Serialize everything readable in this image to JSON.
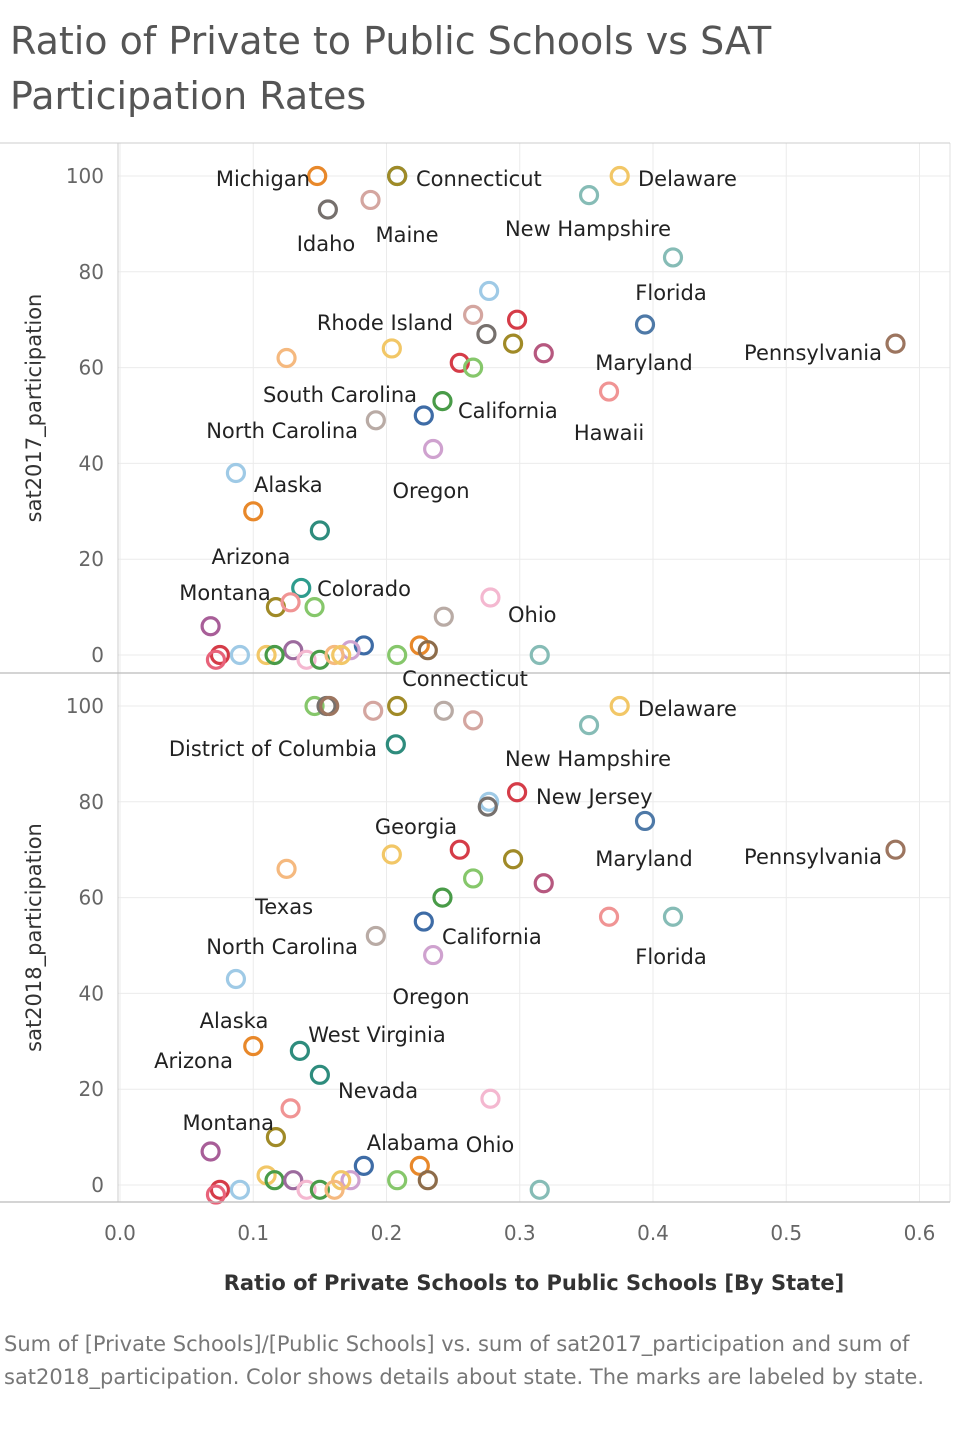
{
  "title": "Ratio of Private to Public Schools vs SAT Participation Rates",
  "caption": "Sum of [Private Schools]/[Public Schools] vs. sum of sat2017_participation and sum of sat2018_participation.  Color shows details about state.  The marks are labeled by state.",
  "chart_data": {
    "type": "scatter",
    "xlabel": "Ratio of Private Schools to Public Schools [By State]",
    "xlim": [
      -0.01,
      0.62
    ],
    "xticks": [
      "0.0",
      "0.1",
      "0.2",
      "0.3",
      "0.4",
      "0.5",
      "0.6"
    ],
    "xtick_values": [
      0,
      0.1,
      0.2,
      0.3,
      0.4,
      0.5,
      0.6
    ],
    "grid": true,
    "panels": [
      {
        "ylabel": "sat2017_participation",
        "ylim": [
          -2,
          107
        ],
        "yticks": [
          "0",
          "20",
          "40",
          "60",
          "80",
          "100"
        ],
        "ytick_values": [
          0,
          20,
          40,
          60,
          80,
          100
        ],
        "points": [
          {
            "x": 0.148,
            "y": 100,
            "color": "#e8882a",
            "label": "Michigan"
          },
          {
            "x": 0.208,
            "y": 100,
            "color": "#2e9c8d"
          },
          {
            "x": 0.208,
            "y": 100,
            "color": "#a08a27",
            "label": "Connecticut"
          },
          {
            "x": 0.375,
            "y": 100,
            "color": "#f2c767",
            "label": "Delaware"
          },
          {
            "x": 0.352,
            "y": 96,
            "color": "#86bcb6"
          },
          {
            "x": 0.156,
            "y": 93,
            "color": "#76706d",
            "label": "Idaho"
          },
          {
            "x": 0.188,
            "y": 95,
            "color": "#d4a6a0",
            "label": "Maine"
          },
          {
            "x": 0.415,
            "y": 83,
            "color": "#86bcb6",
            "label": "Florida"
          },
          {
            "x": 0.277,
            "y": 76,
            "color": "#9fcae6"
          },
          {
            "x": 0.265,
            "y": 71,
            "color": "#d4a6a0",
            "label": "Rhode Island"
          },
          {
            "x": 0.298,
            "y": 70,
            "color": "#d53c48"
          },
          {
            "x": 0.275,
            "y": 67,
            "color": "#76706d"
          },
          {
            "x": 0.394,
            "y": 69,
            "color": "#4e79a7",
            "label": "Maryland"
          },
          {
            "x": 0.582,
            "y": 65,
            "color": "#9c755f",
            "label": "Pennsylvania"
          },
          {
            "x": 0.125,
            "y": 62,
            "color": "#f5b97f"
          },
          {
            "x": 0.204,
            "y": 64,
            "color": "#f2c767"
          },
          {
            "x": 0.295,
            "y": 65,
            "color": "#a08a27"
          },
          {
            "x": 0.318,
            "y": 63,
            "color": "#b6587f"
          },
          {
            "x": 0.255,
            "y": 61,
            "color": "#d53c48"
          },
          {
            "x": 0.265,
            "y": 60,
            "color": "#86c76b"
          },
          {
            "x": 0.242,
            "y": 53,
            "color": "#499b48",
            "label": "California"
          },
          {
            "x": 0.367,
            "y": 55,
            "color": "#f09494",
            "label": "Hawaii"
          },
          {
            "x": 0.192,
            "y": 49,
            "color": "#b9aba5",
            "label": "North Carolina"
          },
          {
            "x": 0.228,
            "y": 50,
            "color": "#3e6ca6"
          },
          {
            "x": 0.235,
            "y": 43,
            "color": "#cfa2cf",
            "label": "Oregon"
          },
          {
            "x": 0.087,
            "y": 38,
            "color": "#9fcae6",
            "label": "Alaska"
          },
          {
            "x": 0.1,
            "y": 30,
            "color": "#e8882a",
            "label": "Arizona"
          },
          {
            "x": 0.15,
            "y": 26,
            "color": "#2e8c7d"
          },
          {
            "x": 0.136,
            "y": 14,
            "color": "#2e9c8d",
            "label": "Colorado"
          },
          {
            "x": 0.278,
            "y": 12,
            "color": "#f4b8d0",
            "label": "Ohio"
          },
          {
            "x": 0.117,
            "y": 10,
            "color": "#a08a27",
            "label": "Montana"
          },
          {
            "x": 0.128,
            "y": 11,
            "color": "#f09494"
          },
          {
            "x": 0.146,
            "y": 10,
            "color": "#86c76b"
          },
          {
            "x": 0.243,
            "y": 8,
            "color": "#b9aba5"
          },
          {
            "x": 0.068,
            "y": 6,
            "color": "#a85e98"
          },
          {
            "x": 0.183,
            "y": 2,
            "color": "#3e6ca6"
          },
          {
            "x": 0.225,
            "y": 2,
            "color": "#e8882a"
          },
          {
            "x": 0.231,
            "y": 1,
            "color": "#8d6c4a"
          },
          {
            "x": 0.13,
            "y": 1,
            "color": "#9c6b9e"
          },
          {
            "x": 0.173,
            "y": 1,
            "color": "#cfa2cf"
          },
          {
            "x": 0.075,
            "y": 0,
            "color": "#d53c48"
          },
          {
            "x": 0.072,
            "y": -1,
            "color": "#e8637a"
          },
          {
            "x": 0.09,
            "y": 0,
            "color": "#9fcae6"
          },
          {
            "x": 0.11,
            "y": 0,
            "color": "#f2c767"
          },
          {
            "x": 0.116,
            "y": 0,
            "color": "#499b48"
          },
          {
            "x": 0.14,
            "y": -1,
            "color": "#f4b8d0"
          },
          {
            "x": 0.15,
            "y": -1,
            "color": "#499b48"
          },
          {
            "x": 0.161,
            "y": 0,
            "color": "#f5b97f"
          },
          {
            "x": 0.166,
            "y": 0,
            "color": "#f2c767"
          },
          {
            "x": 0.208,
            "y": 0,
            "color": "#86c76b"
          },
          {
            "x": 0.315,
            "y": 0,
            "color": "#86bcb6"
          }
        ],
        "label_text": [
          {
            "text": "New Hampshire",
            "x": 0.352,
            "y": 96,
            "pos": "below"
          },
          {
            "text": "South Carolina",
            "x": 0.165,
            "y": 62,
            "pos": "below"
          }
        ]
      },
      {
        "ylabel": "sat2018_participation",
        "ylim": [
          -3,
          107
        ],
        "yticks": [
          "0",
          "20",
          "40",
          "60",
          "80",
          "100"
        ],
        "ytick_values": [
          0,
          20,
          40,
          60,
          80,
          100
        ],
        "points": [
          {
            "x": 0.146,
            "y": 100,
            "color": "#86c76b"
          },
          {
            "x": 0.155,
            "y": 100,
            "color": "#76706d"
          },
          {
            "x": 0.157,
            "y": 100,
            "color": "#9c755f"
          },
          {
            "x": 0.208,
            "y": 100,
            "color": "#a08a27",
            "label": "Connecticut"
          },
          {
            "x": 0.19,
            "y": 99,
            "color": "#d4a6a0"
          },
          {
            "x": 0.243,
            "y": 99,
            "color": "#b9aba5"
          },
          {
            "x": 0.265,
            "y": 97,
            "color": "#d4a6a0"
          },
          {
            "x": 0.375,
            "y": 100,
            "color": "#f2c767",
            "label": "Delaware"
          },
          {
            "x": 0.352,
            "y": 96,
            "color": "#86bcb6",
            "label": "New Hampshire"
          },
          {
            "x": 0.207,
            "y": 92,
            "color": "#2e8c7d",
            "label": "District of Columbia"
          },
          {
            "x": 0.298,
            "y": 82,
            "color": "#d53c48",
            "label": "New Jersey"
          },
          {
            "x": 0.277,
            "y": 80,
            "color": "#9fcae6"
          },
          {
            "x": 0.276,
            "y": 79,
            "color": "#76706d"
          },
          {
            "x": 0.394,
            "y": 76,
            "color": "#4e79a7",
            "label": "Maryland"
          },
          {
            "x": 0.582,
            "y": 70,
            "color": "#9c755f",
            "label": "Pennsylvania"
          },
          {
            "x": 0.255,
            "y": 70,
            "color": "#d53c48",
            "label": "Georgia"
          },
          {
            "x": 0.204,
            "y": 69,
            "color": "#f2c767"
          },
          {
            "x": 0.295,
            "y": 68,
            "color": "#a08a27"
          },
          {
            "x": 0.125,
            "y": 66,
            "color": "#f5b97f",
            "label": "Texas"
          },
          {
            "x": 0.265,
            "y": 64,
            "color": "#86c76b"
          },
          {
            "x": 0.318,
            "y": 63,
            "color": "#b6587f"
          },
          {
            "x": 0.242,
            "y": 60,
            "color": "#499b48"
          },
          {
            "x": 0.367,
            "y": 56,
            "color": "#f09494"
          },
          {
            "x": 0.415,
            "y": 56,
            "color": "#86bcb6",
            "label": "Florida"
          },
          {
            "x": 0.228,
            "y": 55,
            "color": "#3e6ca6",
            "label": "California"
          },
          {
            "x": 0.192,
            "y": 52,
            "color": "#b9aba5",
            "label": "North Carolina"
          },
          {
            "x": 0.235,
            "y": 48,
            "color": "#cfa2cf",
            "label": "Oregon"
          },
          {
            "x": 0.087,
            "y": 43,
            "color": "#9fcae6",
            "label": "Alaska"
          },
          {
            "x": 0.1,
            "y": 29,
            "color": "#e8882a",
            "label": "Arizona"
          },
          {
            "x": 0.135,
            "y": 28,
            "color": "#2e8c7d",
            "label": "West Virginia"
          },
          {
            "x": 0.15,
            "y": 23,
            "color": "#2e8c7d",
            "label": "Nevada"
          },
          {
            "x": 0.278,
            "y": 18,
            "color": "#f4b8d0",
            "label": "Ohio"
          },
          {
            "x": 0.128,
            "y": 16,
            "color": "#f09494",
            "label": "Montana"
          },
          {
            "x": 0.117,
            "y": 10,
            "color": "#a08a27"
          },
          {
            "x": 0.068,
            "y": 7,
            "color": "#a85e98"
          },
          {
            "x": 0.183,
            "y": 4,
            "color": "#3e6ca6"
          },
          {
            "x": 0.225,
            "y": 4,
            "color": "#e8882a",
            "label": "Alabama"
          },
          {
            "x": 0.231,
            "y": 1,
            "color": "#8d6c4a"
          },
          {
            "x": 0.11,
            "y": 2,
            "color": "#f2c767"
          },
          {
            "x": 0.116,
            "y": 1,
            "color": "#499b48"
          },
          {
            "x": 0.13,
            "y": 1,
            "color": "#9c6b9e"
          },
          {
            "x": 0.173,
            "y": 1,
            "color": "#cfa2cf"
          },
          {
            "x": 0.166,
            "y": 1,
            "color": "#f2c767"
          },
          {
            "x": 0.075,
            "y": -1,
            "color": "#d53c48"
          },
          {
            "x": 0.072,
            "y": -2,
            "color": "#e8637a"
          },
          {
            "x": 0.09,
            "y": -1,
            "color": "#9fcae6"
          },
          {
            "x": 0.14,
            "y": -1,
            "color": "#f4b8d0"
          },
          {
            "x": 0.15,
            "y": -1,
            "color": "#499b48"
          },
          {
            "x": 0.161,
            "y": -1,
            "color": "#f5b97f"
          },
          {
            "x": 0.208,
            "y": 1,
            "color": "#86c76b"
          },
          {
            "x": 0.315,
            "y": -1,
            "color": "#86bcb6"
          }
        ]
      }
    ]
  }
}
